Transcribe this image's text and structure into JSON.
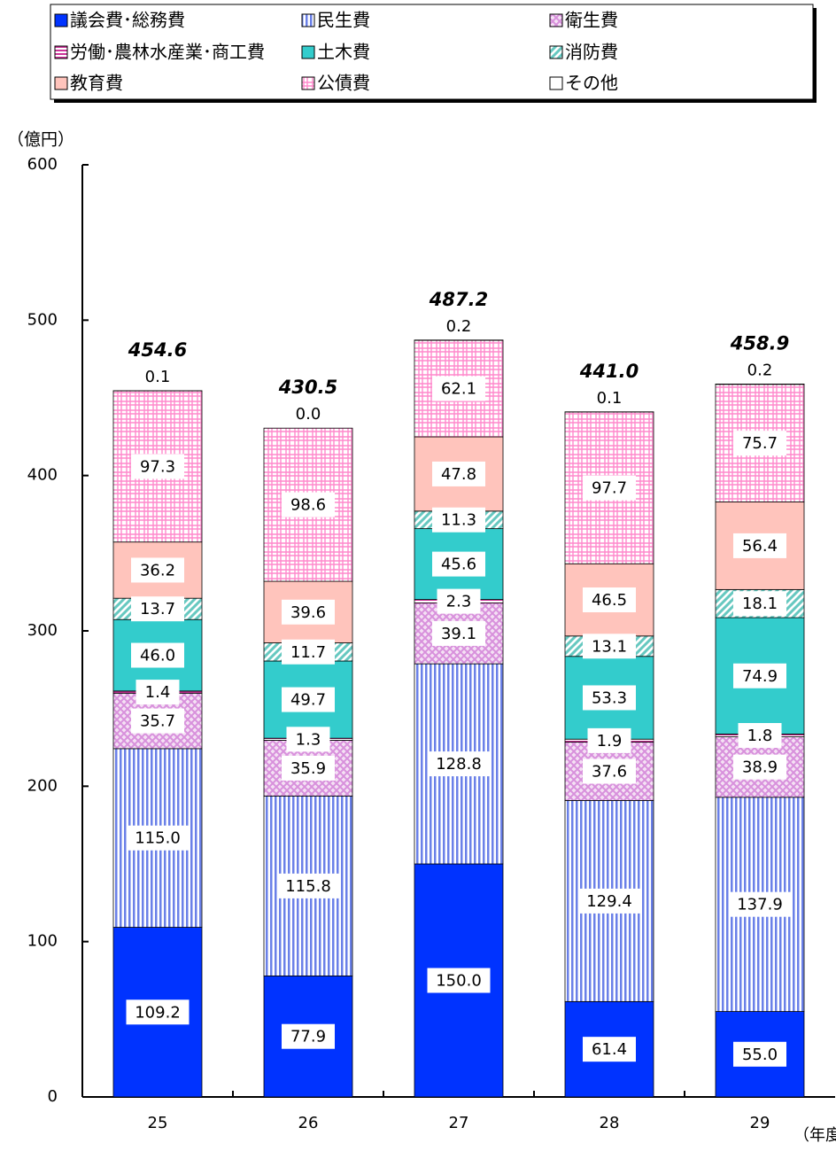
{
  "chart_data": {
    "type": "stacked_bar",
    "y_axis_label": "（億円）",
    "x_axis_label": "（年度）",
    "categories": [
      "25",
      "26",
      "27",
      "28",
      "29"
    ],
    "ylim": [
      0,
      600
    ],
    "yticks": [
      0,
      100,
      200,
      300,
      400,
      500,
      600
    ],
    "legend_position": "top",
    "series": [
      {
        "name": "議会費･総務費",
        "color": "#0033ff",
        "pattern": "solid",
        "values": [
          109.2,
          77.9,
          150.0,
          61.4,
          55.0
        ],
        "value_labels": [
          "109.2",
          "77.9",
          "150.0",
          "61.4",
          "55.0"
        ]
      },
      {
        "name": "民生費",
        "color": "#6a80e8",
        "pattern": "vertical",
        "values": [
          115.0,
          115.8,
          128.8,
          129.4,
          137.9
        ],
        "value_labels": [
          "115.0",
          "115.8",
          "128.8",
          "129.4",
          "137.9"
        ]
      },
      {
        "name": "衛生費",
        "color": "#d890dc",
        "pattern": "crosshatch",
        "values": [
          35.7,
          35.9,
          39.1,
          37.6,
          38.9
        ],
        "value_labels": [
          "35.7",
          "35.9",
          "39.1",
          "37.6",
          "38.9"
        ]
      },
      {
        "name": "労働･農林水産業･商工費",
        "color": "#cc3399",
        "pattern": "horizontal",
        "values": [
          1.4,
          1.3,
          2.3,
          1.9,
          1.8
        ],
        "value_labels": [
          "1.4",
          "1.3",
          "2.3",
          "1.9",
          "1.8"
        ]
      },
      {
        "name": "土木費",
        "color": "#33cccc",
        "pattern": "solid",
        "values": [
          46.0,
          49.7,
          45.6,
          53.3,
          74.9
        ],
        "value_labels": [
          "46.0",
          "49.7",
          "45.6",
          "53.3",
          "74.9"
        ]
      },
      {
        "name": "消防費",
        "color": "#66c8c0",
        "pattern": "diagonal",
        "values": [
          13.7,
          11.7,
          11.3,
          13.1,
          18.1
        ],
        "value_labels": [
          "13.7",
          "11.7",
          "11.3",
          "13.1",
          "18.1"
        ]
      },
      {
        "name": "教育費",
        "color": "#ffc4bc",
        "pattern": "solid",
        "values": [
          36.2,
          39.6,
          47.8,
          46.5,
          56.4
        ],
        "value_labels": [
          "36.2",
          "39.6",
          "47.8",
          "46.5",
          "56.4"
        ]
      },
      {
        "name": "公債費",
        "color": "#ff88cc",
        "pattern": "grid",
        "values": [
          97.3,
          98.6,
          62.1,
          97.7,
          75.7
        ],
        "value_labels": [
          "97.3",
          "98.6",
          "62.1",
          "97.7",
          "75.7"
        ]
      },
      {
        "name": "その他",
        "color": "#ffffff",
        "pattern": "solid",
        "values": [
          0.1,
          0.0,
          0.2,
          0.1,
          0.2
        ],
        "value_labels": [
          "0.1",
          "0.0",
          "0.2",
          "0.1",
          "0.2"
        ]
      }
    ],
    "totals": [
      454.6,
      430.5,
      487.2,
      441.0,
      458.9
    ],
    "total_labels": [
      "454.6",
      "430.5",
      "487.2",
      "441.0",
      "458.9"
    ]
  }
}
